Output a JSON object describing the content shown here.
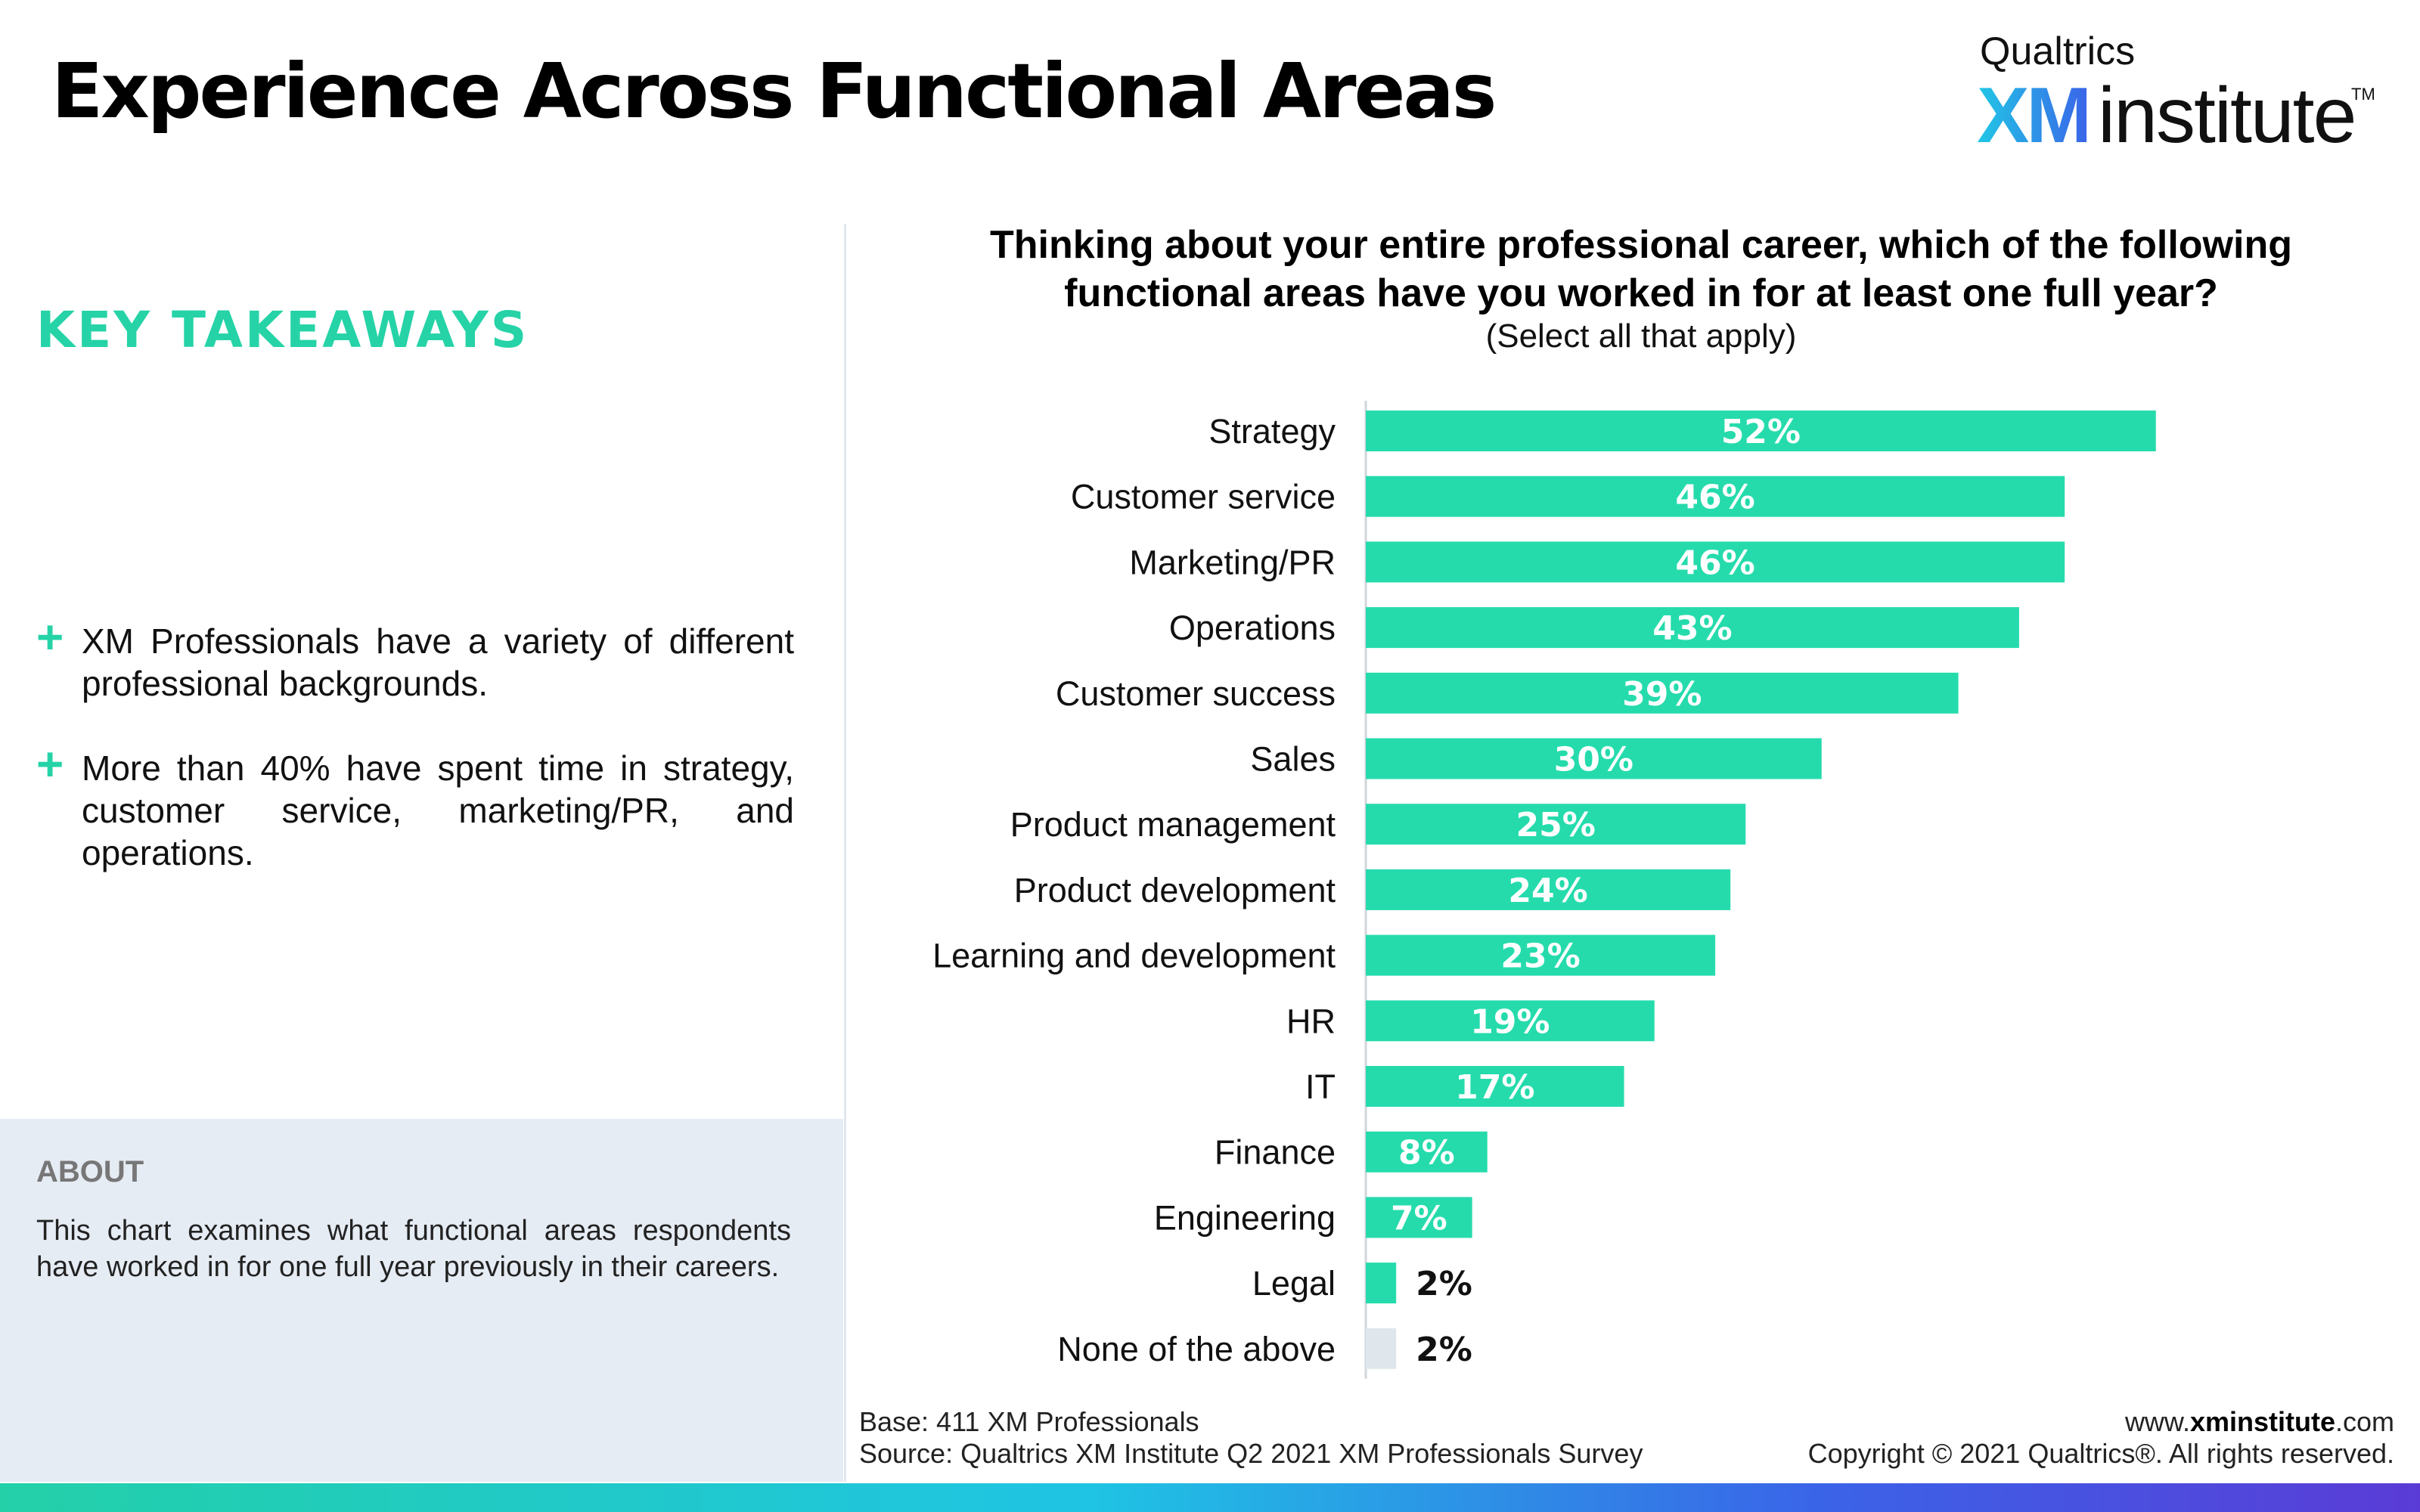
{
  "header": {
    "title": "Experience Across Functional Areas"
  },
  "logo": {
    "top": "Qualtrics",
    "xm": "XM",
    "institute": "institute",
    "tm": "TM"
  },
  "takeaways": {
    "title": "KEY TAKEAWAYS",
    "items": [
      "XM Professionals have a variety of different professional backgrounds.",
      "More than 40% have spent time in strategy, customer service, marketing/PR, and operations."
    ]
  },
  "about": {
    "title": "ABOUT",
    "text": "This chart examines what functional areas respondents have worked in for one full year previously in their careers."
  },
  "colors": {
    "accent": "#25d3a7",
    "bar": "#25dbac",
    "bar_none": "#dfe7ec",
    "axis": "#d0d6dc",
    "about_bg": "#e6ecf4"
  },
  "footer": {
    "base": "Base: 411 XM Professionals",
    "source": "Source: Qualtrics XM Institute Q2 2021 XM Professionals Survey",
    "website_prefix": "www.",
    "website_bold": "xminstitute",
    "website_suffix": ".com",
    "copyright": "Copyright © 2021 Qualtrics®. All rights reserved."
  },
  "chart_data": {
    "type": "bar",
    "orientation": "horizontal",
    "title": "Thinking about your entire professional career, which of the following functional areas have you worked in for at least one full year?",
    "subtitle": "(Select all that apply)",
    "categories": [
      "Strategy",
      "Customer service",
      "Marketing/PR",
      "Operations",
      "Customer success",
      "Sales",
      "Product management",
      "Product development",
      "Learning and development",
      "HR",
      "IT",
      "Finance",
      "Engineering",
      "Legal",
      "None of the above"
    ],
    "values": [
      52,
      46,
      46,
      43,
      39,
      30,
      25,
      24,
      23,
      19,
      17,
      8,
      7,
      2,
      2
    ],
    "labels": [
      "52%",
      "46%",
      "46%",
      "43%",
      "39%",
      "30%",
      "25%",
      "24%",
      "23%",
      "19%",
      "17%",
      "8%",
      "7%",
      "2%",
      "2%"
    ],
    "xlim": [
      0,
      55
    ],
    "xlabel": "",
    "ylabel": "",
    "grid": false,
    "legend": "none"
  }
}
